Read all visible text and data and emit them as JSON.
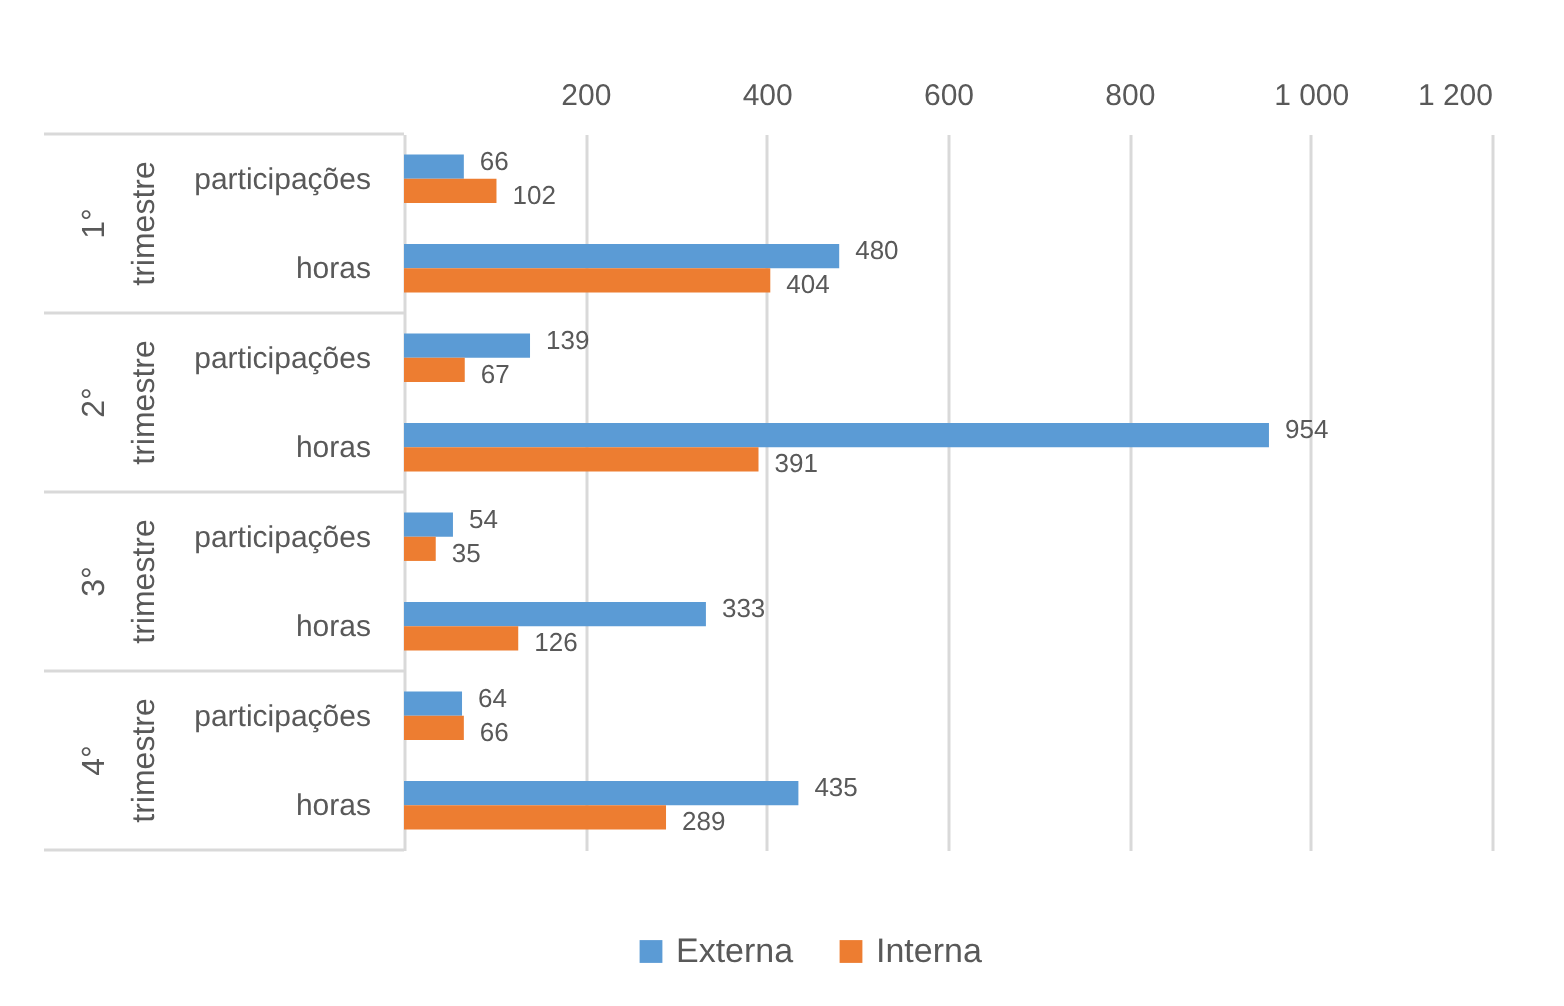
{
  "chart_data": {
    "type": "bar",
    "orientation": "horizontal",
    "categories": [
      "participações",
      "horas",
      "participações",
      "horas",
      "participações",
      "horas",
      "participações",
      "horas"
    ],
    "series": [
      {
        "name": "Externa",
        "color": "#5b9bd5",
        "values": [
          66,
          480,
          139,
          954,
          54,
          333,
          64,
          435
        ]
      },
      {
        "name": "Interna",
        "color": "#ed7d31",
        "values": [
          102,
          404,
          67,
          391,
          35,
          126,
          66,
          289
        ]
      }
    ],
    "xlim": [
      0,
      1200
    ],
    "xticks": [
      200,
      400,
      600,
      800,
      {
        "value": 1000,
        "label": "1 000"
      },
      {
        "value": 1200,
        "label": "1 200"
      }
    ],
    "grid": "x",
    "legend": "bottom",
    "data_labels": true,
    "annotations": [
      "1° trimestre",
      "2° trimestre",
      "3° trimestre",
      "4° trimestre"
    ]
  }
}
